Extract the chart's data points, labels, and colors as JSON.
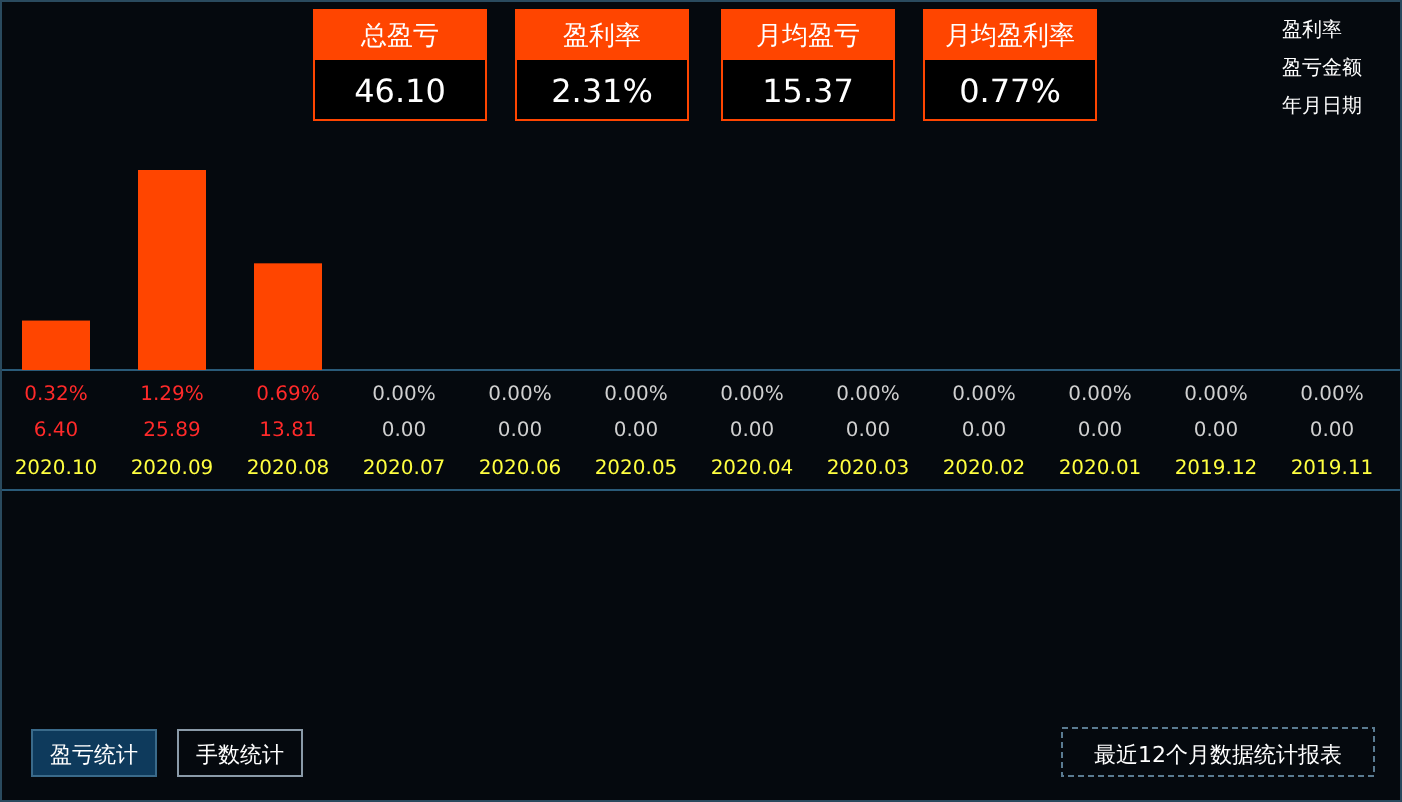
{
  "chart_data": [
    {
      "type": "other",
      "categories": [
        "总盈亏",
        "盈利率",
        "月均盈亏",
        "月均盈利率"
      ],
      "value_labels": [
        "46.10",
        "2.31%",
        "15.37",
        "0.77%"
      ],
      "color": "#ff4500"
    },
    {
      "type": "bar",
      "categories": [
        "2020.10",
        "2020.09",
        "2020.08",
        "2020.07",
        "2020.06",
        "2020.05",
        "2020.04",
        "2020.03",
        "2020.02",
        "2020.01",
        "2019.12",
        "2019.11"
      ],
      "series": [
        {
          "name": "盈亏金额",
          "color": "#ff4500",
          "values": [
            6.4,
            25.89,
            13.81,
            0,
            0,
            0,
            0,
            0,
            0,
            0,
            0,
            0
          ],
          "value_labels": [
            "6.40",
            "25.89",
            "13.81",
            "0.00",
            "0.00",
            "0.00",
            "0.00",
            "0.00",
            "0.00",
            "0.00",
            "0.00",
            "0.00"
          ]
        }
      ],
      "annotations": [
        "盈利率",
        "年月日期",
        "0.32%",
        "1.29%",
        "0.69%",
        "0.00%",
        "0.00%",
        "0.00%",
        "0.00%",
        "0.00%",
        "0.00%",
        "0.00%",
        "0.00%",
        "0.00%",
        "盈亏统计",
        "手数统计",
        "最近12个月数据统计报表"
      ]
    }
  ]
}
